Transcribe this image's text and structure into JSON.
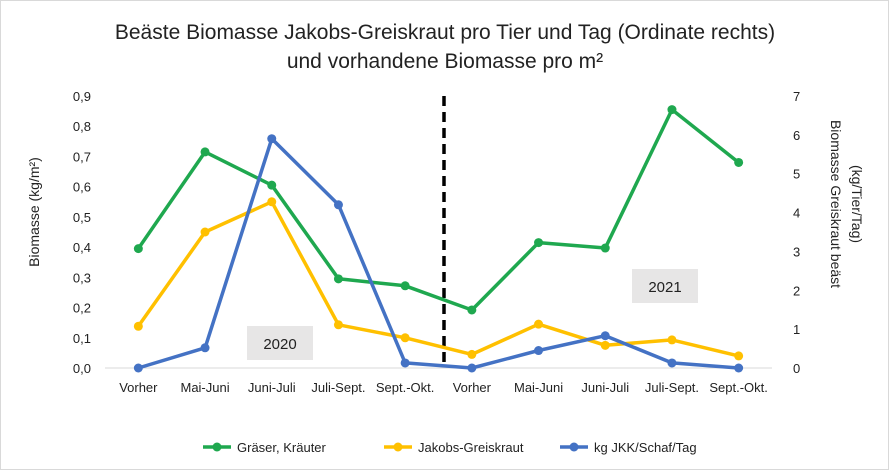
{
  "chart_data": {
    "type": "line",
    "title_line1": "Beäste Biomasse Jakobs-Greiskraut pro Tier und Tag (Ordinate rechts)",
    "title_line2": "und vorhandene Biomasse pro m²",
    "categories": [
      "Vorher",
      "Mai-Juni",
      "Juni-Juli",
      "Juli-Sept.",
      "Sept.-Okt.",
      "Vorher",
      "Mai-Juni",
      "Juni-Juli",
      "Juli-Sept.",
      "Sept.-Okt."
    ],
    "ylabel_left": "Biomasse (kg/m²)",
    "ylabel_right_line1": "Biomasse Greiskraut beäst",
    "ylabel_right_line2": "(kg/Tier/Tag)",
    "ylim_left": [
      0,
      0.9
    ],
    "ylim_right": [
      0,
      7
    ],
    "yticks_left": [
      "0,0",
      "0,1",
      "0,2",
      "0,3",
      "0,4",
      "0,5",
      "0,6",
      "0,7",
      "0,8",
      "0,9"
    ],
    "yticks_right": [
      "0",
      "1",
      "2",
      "3",
      "4",
      "5",
      "6",
      "7"
    ],
    "grid": false,
    "legend_position": "bottom",
    "year_labels": [
      "2020",
      "2021"
    ],
    "series": [
      {
        "name": "Gräser, Kräuter",
        "color": "#1fa84f",
        "axis": "left",
        "values": [
          0.395,
          0.715,
          0.605,
          0.295,
          0.272,
          0.192,
          0.415,
          0.397,
          0.855,
          0.68
        ]
      },
      {
        "name": "Jakobs-Greiskraut",
        "color": "#ffc000",
        "axis": "left",
        "values": [
          0.138,
          0.45,
          0.55,
          0.143,
          0.1,
          0.045,
          0.145,
          0.075,
          0.093,
          0.04
        ]
      },
      {
        "name": "kg JKK/Schaf/Tag",
        "color": "#4472c4",
        "axis": "right",
        "values": [
          0.0,
          0.52,
          5.9,
          4.2,
          0.13,
          0.0,
          0.45,
          0.83,
          0.13,
          0.0
        ]
      }
    ]
  }
}
